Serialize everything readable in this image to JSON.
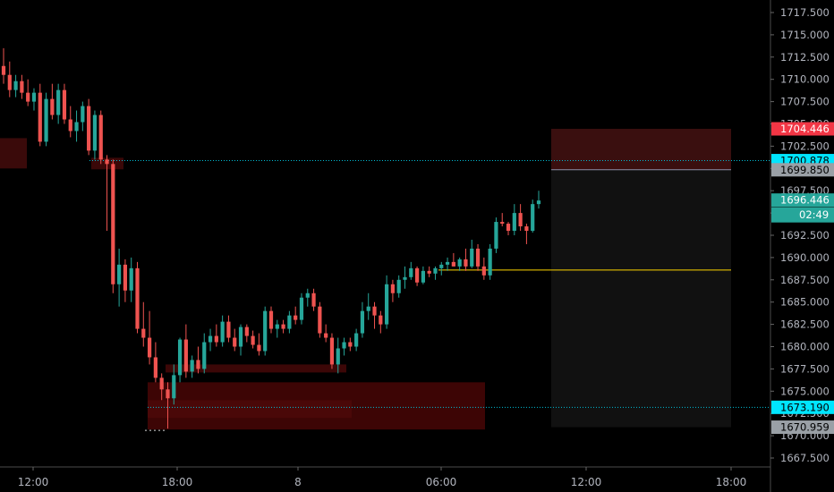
{
  "chart_data": {
    "type": "candlestick",
    "ylim": [
      1665.5,
      1720.0
    ],
    "x_ticks": [
      "12:00",
      "18:00",
      "8",
      "06:00",
      "12:00",
      "18:00"
    ],
    "y_ticks": [
      "1717.500",
      "1715.000",
      "1712.500",
      "1710.000",
      "1707.500",
      "1705.000",
      "1702.500",
      "1700.000",
      "1697.500",
      "1695.000",
      "1692.500",
      "1690.000",
      "1687.500",
      "1685.000",
      "1682.500",
      "1680.000",
      "1677.500",
      "1675.000",
      "1672.500",
      "1670.000",
      "1667.500"
    ],
    "price_labels": [
      {
        "text": "1704.446",
        "value": 1704.446,
        "bg": "#f23645",
        "fg": "#ffffff"
      },
      {
        "text": "1700.878",
        "value": 1700.878,
        "bg": "#00e5ff",
        "fg": "#000000"
      },
      {
        "text": "1699.850",
        "value": 1699.85,
        "bg": "#9aa0a6",
        "fg": "#000000"
      },
      {
        "text": "1696.446",
        "value": 1696.446,
        "bg": "#26a69a",
        "fg": "#ffffff"
      },
      {
        "text": "1673.190",
        "value": 1673.19,
        "bg": "#00e5ff",
        "fg": "#000000"
      },
      {
        "text": "1670.959",
        "value": 1670.959,
        "bg": "#9aa0a6",
        "fg": "#000000"
      }
    ],
    "countdown": "02:49",
    "horizontal_lines": [
      {
        "name": "cyan-level-upper",
        "value": 1700.878,
        "color": "#00bcd4",
        "style": "dotted"
      },
      {
        "name": "cyan-level-lower",
        "value": 1673.19,
        "color": "#00bcd4",
        "style": "dotted"
      },
      {
        "name": "yellow-level",
        "value": 1688.6,
        "color": "#ffd600",
        "style": "solid"
      }
    ],
    "zones": [
      {
        "name": "supply-zone-left",
        "top": 1703.4,
        "bottom": 1700.0,
        "color": "#3a0a0a"
      },
      {
        "name": "supply-zone-small",
        "top": 1701.2,
        "bottom": 1699.9,
        "color": "#3a0808"
      },
      {
        "name": "demand-zone-thin",
        "top": 1678.0,
        "bottom": 1677.1,
        "color": "#3c0707"
      },
      {
        "name": "demand-zone-wide",
        "top": 1676.0,
        "bottom": 1670.7,
        "color": "#3d0505"
      },
      {
        "name": "demand-zone-inner",
        "top": 1674.0,
        "bottom": 1672.0,
        "color": "#4a0808"
      },
      {
        "name": "risk-zone-stop",
        "top": 1704.446,
        "bottom": 1699.85,
        "color": "#3a0f0f"
      },
      {
        "name": "risk-zone-target",
        "top": 1699.85,
        "bottom": 1670.959,
        "color": "#111111"
      }
    ],
    "candles": [
      [
        1711.5,
        1713.5,
        1709.5,
        1710.5
      ],
      [
        1710.5,
        1712.0,
        1708.0,
        1708.8
      ],
      [
        1708.8,
        1710.5,
        1708.0,
        1709.8
      ],
      [
        1709.8,
        1710.5,
        1707.8,
        1708.5
      ],
      [
        1708.5,
        1710.0,
        1707.0,
        1707.5
      ],
      [
        1707.5,
        1709.0,
        1706.5,
        1708.5
      ],
      [
        1708.5,
        1709.5,
        1702.5,
        1703.0
      ],
      [
        1703.0,
        1708.5,
        1702.5,
        1707.8
      ],
      [
        1707.8,
        1709.5,
        1705.5,
        1706.0
      ],
      [
        1706.0,
        1709.5,
        1705.0,
        1708.8
      ],
      [
        1708.8,
        1709.5,
        1705.0,
        1705.5
      ],
      [
        1705.5,
        1707.0,
        1703.5,
        1704.2
      ],
      [
        1704.2,
        1706.5,
        1703.0,
        1705.2
      ],
      [
        1705.2,
        1707.5,
        1704.2,
        1707.0
      ],
      [
        1707.0,
        1707.8,
        1701.5,
        1702.0
      ],
      [
        1702.0,
        1706.5,
        1701.0,
        1706.0
      ],
      [
        1706.0,
        1706.5,
        1700.5,
        1701.0
      ],
      [
        1701.0,
        1701.5,
        1693.0,
        1700.5
      ],
      [
        1700.5,
        1701.0,
        1686.0,
        1687.0
      ],
      [
        1687.0,
        1691.0,
        1684.5,
        1689.2
      ],
      [
        1689.2,
        1689.8,
        1685.0,
        1686.3
      ],
      [
        1686.3,
        1690.0,
        1685.0,
        1688.8
      ],
      [
        1688.8,
        1689.5,
        1681.5,
        1682.0
      ],
      [
        1682.0,
        1685.0,
        1680.0,
        1681.0
      ],
      [
        1681.0,
        1684.0,
        1678.0,
        1678.8
      ],
      [
        1678.8,
        1680.5,
        1676.0,
        1676.5
      ],
      [
        1676.5,
        1677.0,
        1674.0,
        1675.2
      ],
      [
        1675.2,
        1676.0,
        1670.8,
        1674.2
      ],
      [
        1674.2,
        1678.0,
        1673.5,
        1676.8
      ],
      [
        1676.8,
        1681.0,
        1676.0,
        1680.8
      ],
      [
        1680.8,
        1682.5,
        1676.5,
        1677.2
      ],
      [
        1677.2,
        1679.0,
        1676.5,
        1678.5
      ],
      [
        1678.5,
        1680.0,
        1677.0,
        1677.5
      ],
      [
        1677.5,
        1681.5,
        1677.0,
        1680.5
      ],
      [
        1680.5,
        1682.0,
        1679.5,
        1681.2
      ],
      [
        1681.2,
        1682.5,
        1680.0,
        1680.5
      ],
      [
        1680.5,
        1683.5,
        1680.0,
        1682.8
      ],
      [
        1682.8,
        1683.5,
        1680.5,
        1681.0
      ],
      [
        1681.0,
        1682.0,
        1679.5,
        1680.0
      ],
      [
        1680.0,
        1682.5,
        1679.0,
        1682.2
      ],
      [
        1682.2,
        1682.5,
        1680.5,
        1681.2
      ],
      [
        1681.2,
        1681.8,
        1679.8,
        1680.2
      ],
      [
        1680.2,
        1681.5,
        1679.0,
        1679.5
      ],
      [
        1679.5,
        1684.5,
        1679.0,
        1684.0
      ],
      [
        1684.0,
        1684.5,
        1681.5,
        1682.0
      ],
      [
        1682.0,
        1683.0,
        1681.0,
        1682.5
      ],
      [
        1682.5,
        1683.0,
        1681.5,
        1682.0
      ],
      [
        1682.0,
        1684.0,
        1681.5,
        1683.5
      ],
      [
        1683.5,
        1684.5,
        1682.5,
        1683.0
      ],
      [
        1683.0,
        1686.0,
        1682.5,
        1685.5
      ],
      [
        1685.5,
        1686.5,
        1684.5,
        1686.0
      ],
      [
        1686.0,
        1686.5,
        1684.0,
        1684.5
      ],
      [
        1684.5,
        1685.0,
        1681.0,
        1681.5
      ],
      [
        1681.5,
        1682.5,
        1680.5,
        1681.0
      ],
      [
        1681.0,
        1681.5,
        1677.5,
        1678.0
      ],
      [
        1678.0,
        1681.0,
        1677.0,
        1679.8
      ],
      [
        1679.8,
        1681.0,
        1679.0,
        1680.5
      ],
      [
        1680.5,
        1681.0,
        1679.5,
        1680.0
      ],
      [
        1680.0,
        1682.0,
        1679.5,
        1681.5
      ],
      [
        1681.5,
        1685.0,
        1681.0,
        1684.0
      ],
      [
        1684.0,
        1686.0,
        1683.0,
        1684.5
      ],
      [
        1684.5,
        1685.0,
        1682.0,
        1683.5
      ],
      [
        1683.5,
        1684.0,
        1681.5,
        1682.5
      ],
      [
        1682.5,
        1688.0,
        1682.0,
        1687.0
      ],
      [
        1687.0,
        1687.5,
        1685.0,
        1686.0
      ],
      [
        1686.0,
        1688.0,
        1685.5,
        1687.5
      ],
      [
        1687.5,
        1689.0,
        1686.5,
        1687.8
      ],
      [
        1687.8,
        1689.5,
        1687.5,
        1688.8
      ],
      [
        1688.8,
        1689.0,
        1686.8,
        1687.2
      ],
      [
        1687.2,
        1689.0,
        1687.0,
        1688.5
      ],
      [
        1688.5,
        1689.0,
        1687.8,
        1688.2
      ],
      [
        1688.2,
        1689.0,
        1687.5,
        1688.8
      ],
      [
        1688.8,
        1689.5,
        1688.0,
        1689.2
      ],
      [
        1689.2,
        1690.0,
        1688.5,
        1689.5
      ],
      [
        1689.5,
        1690.5,
        1689.0,
        1689.0
      ],
      [
        1689.0,
        1690.0,
        1688.5,
        1689.8
      ],
      [
        1689.8,
        1691.0,
        1688.5,
        1689.0
      ],
      [
        1689.0,
        1692.0,
        1688.8,
        1691.0
      ],
      [
        1691.0,
        1691.5,
        1688.5,
        1689.0
      ],
      [
        1689.0,
        1690.0,
        1687.5,
        1688.0
      ],
      [
        1688.0,
        1691.5,
        1687.5,
        1691.0
      ],
      [
        1691.0,
        1694.5,
        1690.5,
        1694.0
      ],
      [
        1694.0,
        1695.0,
        1693.5,
        1693.8
      ],
      [
        1693.8,
        1694.0,
        1692.5,
        1693.0
      ],
      [
        1693.0,
        1696.0,
        1692.5,
        1695.0
      ],
      [
        1695.0,
        1696.0,
        1693.0,
        1693.5
      ],
      [
        1693.5,
        1693.8,
        1691.5,
        1693.0
      ],
      [
        1693.0,
        1696.5,
        1692.8,
        1696.0
      ],
      [
        1696.0,
        1697.5,
        1695.5,
        1696.4
      ]
    ]
  }
}
